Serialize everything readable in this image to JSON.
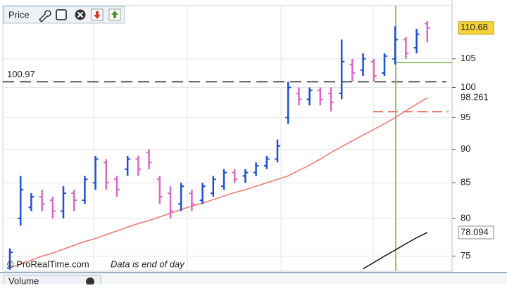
{
  "chart_data": {
    "type": "ohlc",
    "title": "Price",
    "lower_panel_title": "Volume",
    "source": "© ProRealTime.com",
    "note": "Data is end of day",
    "log_scale": true,
    "grid": true,
    "ylim": [
      73.2,
      114.7
    ],
    "yticks": [
      75,
      80,
      85,
      90,
      95,
      100,
      105
    ],
    "up_color": "#1f4fd6",
    "down_color": "#e066c6",
    "open": [
      73.5,
      80,
      81.5,
      83,
      82.5,
      81,
      83.5,
      82.5,
      85,
      88,
      85.5,
      87,
      88.5,
      89.5,
      85.5,
      83.5,
      82,
      83.5,
      82.5,
      83.5,
      84.5,
      86.5,
      86,
      86.5,
      87.5,
      88.5,
      95,
      99,
      98,
      99.5,
      99,
      99,
      104,
      103,
      104.5,
      102.5,
      105,
      108.5,
      107,
      111.5
    ],
    "high": [
      76,
      86,
      83.5,
      84,
      83,
      84.5,
      84,
      86,
      89,
      88.5,
      86,
      89,
      89,
      90,
      86,
      84.5,
      85,
      84,
      85,
      86,
      87,
      87,
      87,
      88,
      89,
      91.5,
      101,
      100,
      100,
      100,
      100,
      108.5,
      105,
      106,
      105,
      106,
      111,
      109,
      110.5,
      112
    ],
    "low": [
      73.3,
      79,
      81,
      81,
      80,
      80,
      81,
      82,
      84,
      84,
      83,
      86,
      86,
      87,
      82,
      80,
      81,
      81,
      82,
      83,
      84,
      85,
      85,
      86,
      87,
      88,
      94,
      97,
      97,
      97,
      96,
      98,
      101,
      102,
      101,
      102,
      104,
      105,
      106,
      108
    ],
    "close": [
      75.5,
      84,
      83,
      82,
      81,
      83.5,
      82.5,
      85.5,
      88.5,
      85,
      84,
      88.5,
      87,
      88,
      83,
      81,
      84.5,
      82,
      84.5,
      85.5,
      86.5,
      85.5,
      86.5,
      87.5,
      88.5,
      90.5,
      100,
      98,
      99.5,
      98,
      97.5,
      104.5,
      102.5,
      105,
      102,
      105.5,
      108.5,
      106,
      109.5,
      110.68
    ],
    "series": [
      {
        "color": "#ee7d72",
        "values": [
          73.5,
          74,
          74.5,
          75,
          75.4,
          75.9,
          76.4,
          76.9,
          77.3,
          77.8,
          78.3,
          78.8,
          79.3,
          79.7,
          80.2,
          80.7,
          81.2,
          81.7,
          82.1,
          82.6,
          83.1,
          83.6,
          84,
          84.5,
          85,
          85.5,
          86,
          86.8,
          87.6,
          88.5,
          89.5,
          90.4,
          91.3,
          92.2,
          93.1,
          94,
          95,
          96.1,
          97.2,
          98.261
        ]
      },
      {
        "color": "#222222",
        "values": [
          null,
          null,
          null,
          null,
          null,
          null,
          null,
          null,
          null,
          null,
          null,
          null,
          null,
          null,
          null,
          null,
          null,
          null,
          null,
          null,
          null,
          null,
          null,
          null,
          null,
          null,
          null,
          null,
          null,
          null,
          null,
          null,
          null,
          73.4,
          74.2,
          75,
          75.8,
          76.6,
          77.4,
          78.094
        ]
      }
    ],
    "reference_line": 100.97
  }
}
